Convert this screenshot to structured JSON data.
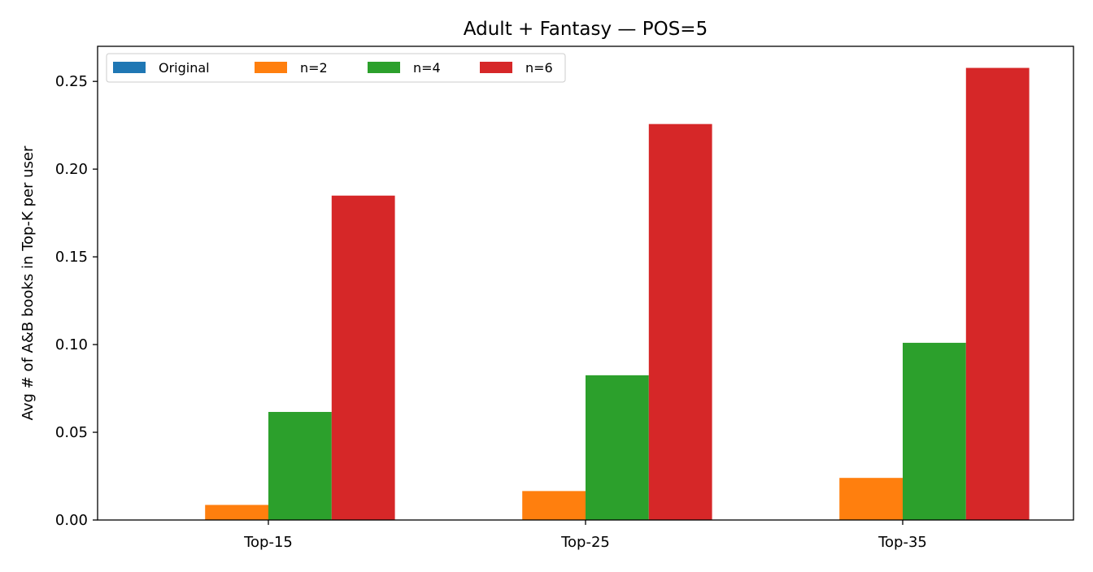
{
  "chart_data": {
    "type": "bar",
    "title": "Adult + Fantasy — POS=5",
    "xlabel": "",
    "ylabel": "Avg # of A&B books in Top-K per user",
    "categories": [
      "Top-15",
      "Top-25",
      "Top-35"
    ],
    "ylim": [
      0,
      0.27
    ],
    "yticks": [
      0.0,
      0.05,
      0.1,
      0.15,
      0.2,
      0.25
    ],
    "ytick_labels": [
      "0.00",
      "0.05",
      "0.10",
      "0.15",
      "0.20",
      "0.25"
    ],
    "grid": false,
    "legend_position": "top-left",
    "series": [
      {
        "name": "Original",
        "color": "#1f77b4",
        "values": [
          0.0,
          0.0,
          0.0
        ]
      },
      {
        "name": "n=2",
        "color": "#ff7f0e",
        "values": [
          0.0086,
          0.0165,
          0.024
        ]
      },
      {
        "name": "n=4",
        "color": "#2ca02c",
        "values": [
          0.0616,
          0.0825,
          0.101
        ]
      },
      {
        "name": "n=6",
        "color": "#d62728",
        "values": [
          0.1849,
          0.2257,
          0.2577
        ]
      }
    ]
  }
}
